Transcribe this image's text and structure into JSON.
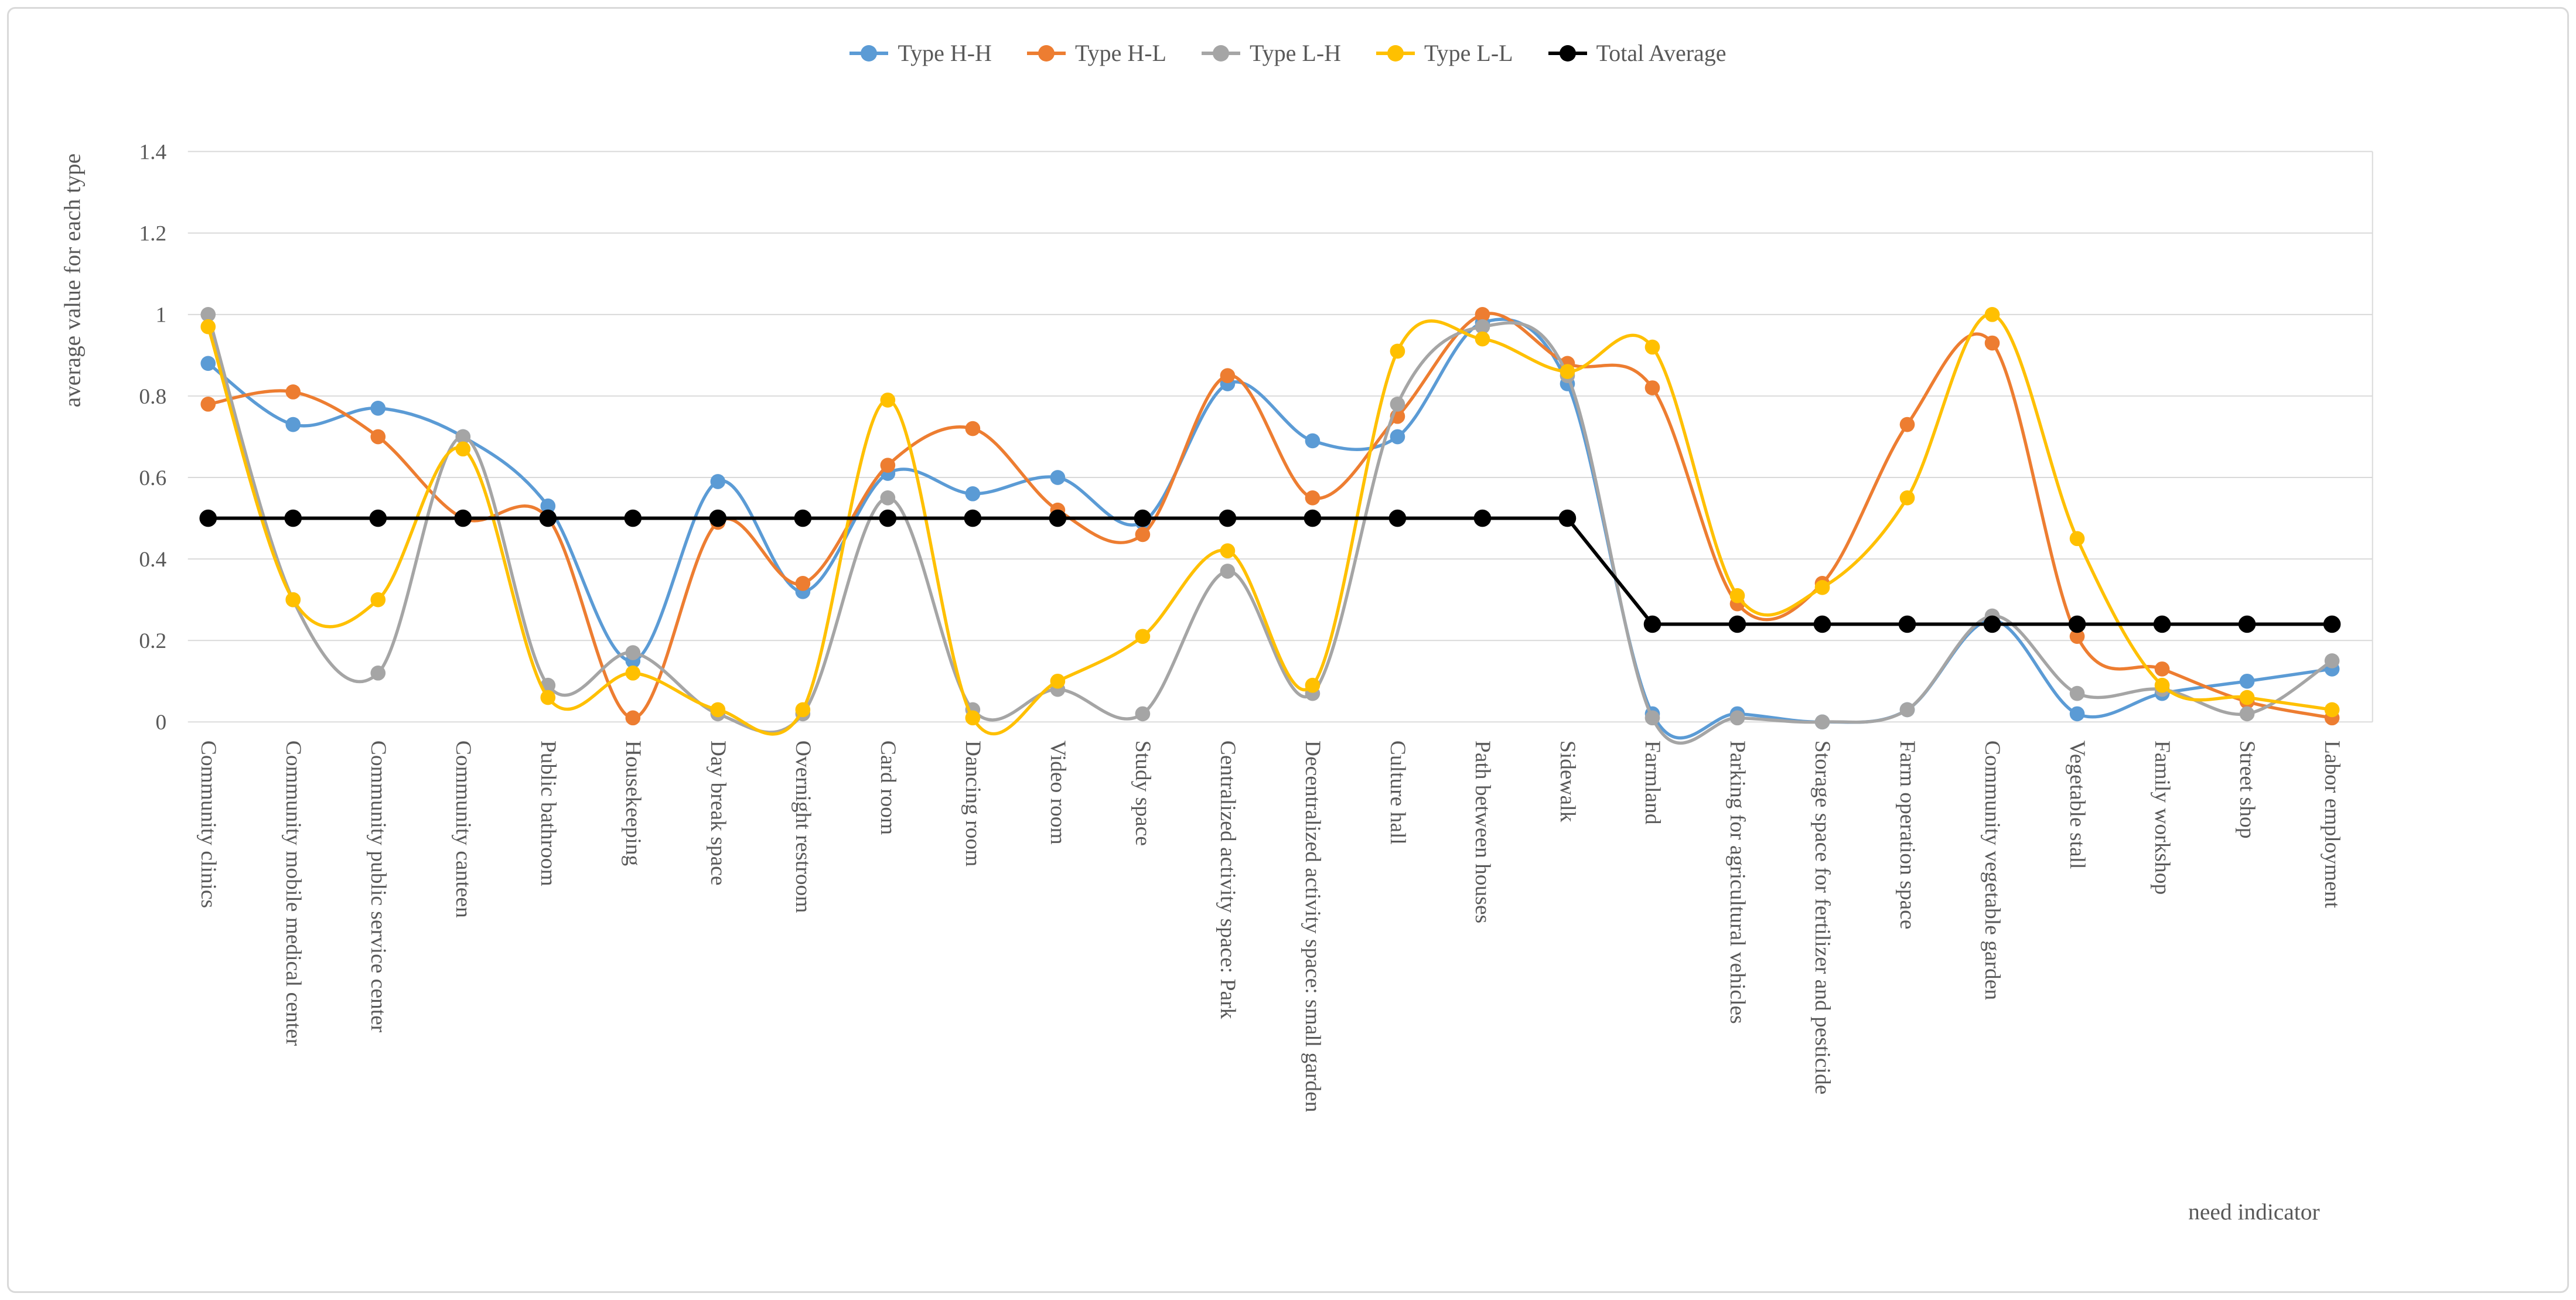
{
  "figure": {
    "background": "#ffffff",
    "border_color": "#d9d9d9",
    "gridline_color": "#d9d9d9",
    "text_color": "#595959"
  },
  "chart_data": {
    "type": "line",
    "title": "",
    "xlabel": "need indicator",
    "ylabel": "average value for each type",
    "ylim": [
      0,
      1.4
    ],
    "y_tick_labels": [
      "0",
      "0.2",
      "0.4",
      "0.6",
      "0.8",
      "1",
      "1.2",
      "1.4"
    ],
    "y_tick_values": [
      0,
      0.2,
      0.4,
      0.6,
      0.8,
      1.0,
      1.2,
      1.4
    ],
    "grid": "horizontal",
    "legend_position": "top-center",
    "marker": "circle",
    "categories": [
      "Community clinics",
      "Community mobile medical center",
      "Community public service center",
      "Community canteen",
      "Public bathroom",
      "Housekeeping",
      "Day break space",
      "Overnight restroom",
      "Card room",
      "Dancing room",
      "Video room",
      "Study space",
      "Centralized activity space: Park",
      "Decentralized activity space: small garden",
      "Culture hall",
      "Path between houses",
      "Sidewalk",
      "Farmland",
      "Parking for agricultural vehicles",
      "Storage space for fertilizer and pesticide",
      "Farm operation space",
      "Community vegetable garden",
      "Vegetable stall",
      "Family workshop",
      "Street shop",
      "Labor employment"
    ],
    "series": [
      {
        "name": "Type H-H",
        "color": "#5B9BD5",
        "smooth": true,
        "values": [
          0.88,
          0.73,
          0.77,
          0.7,
          0.53,
          0.15,
          0.59,
          0.32,
          0.61,
          0.56,
          0.6,
          0.49,
          0.83,
          0.69,
          0.7,
          0.98,
          0.83,
          0.02,
          0.02,
          0.0,
          0.03,
          0.25,
          0.02,
          0.07,
          0.1,
          0.13
        ]
      },
      {
        "name": "Type H-L",
        "color": "#ED7D31",
        "smooth": true,
        "values": [
          0.78,
          0.81,
          0.7,
          0.5,
          0.5,
          0.01,
          0.49,
          0.34,
          0.63,
          0.72,
          0.52,
          0.46,
          0.85,
          0.55,
          0.75,
          1.0,
          0.88,
          0.82,
          0.29,
          0.34,
          0.73,
          0.93,
          0.21,
          0.13,
          0.05,
          0.01
        ]
      },
      {
        "name": "Type L-H",
        "color": "#A5A5A5",
        "smooth": true,
        "values": [
          1.0,
          0.3,
          0.12,
          0.7,
          0.09,
          0.17,
          0.02,
          0.02,
          0.55,
          0.03,
          0.08,
          0.02,
          0.37,
          0.07,
          0.78,
          0.97,
          0.85,
          0.01,
          0.01,
          0.0,
          0.03,
          0.26,
          0.07,
          0.08,
          0.02,
          0.15
        ]
      },
      {
        "name": "Type L-L",
        "color": "#FFC000",
        "smooth": true,
        "values": [
          0.97,
          0.3,
          0.3,
          0.67,
          0.06,
          0.12,
          0.03,
          0.03,
          0.79,
          0.01,
          0.1,
          0.21,
          0.42,
          0.09,
          0.91,
          0.94,
          0.86,
          0.92,
          0.31,
          0.33,
          0.55,
          1.0,
          0.45,
          0.09,
          0.06,
          0.03
        ]
      },
      {
        "name": "Total Average",
        "color": "#000000",
        "smooth": false,
        "values": [
          0.5,
          0.5,
          0.5,
          0.5,
          0.5,
          0.5,
          0.5,
          0.5,
          0.5,
          0.5,
          0.5,
          0.5,
          0.5,
          0.5,
          0.5,
          0.5,
          0.5,
          0.24,
          0.24,
          0.24,
          0.24,
          0.24,
          0.24,
          0.24,
          0.24,
          0.24
        ]
      }
    ]
  }
}
